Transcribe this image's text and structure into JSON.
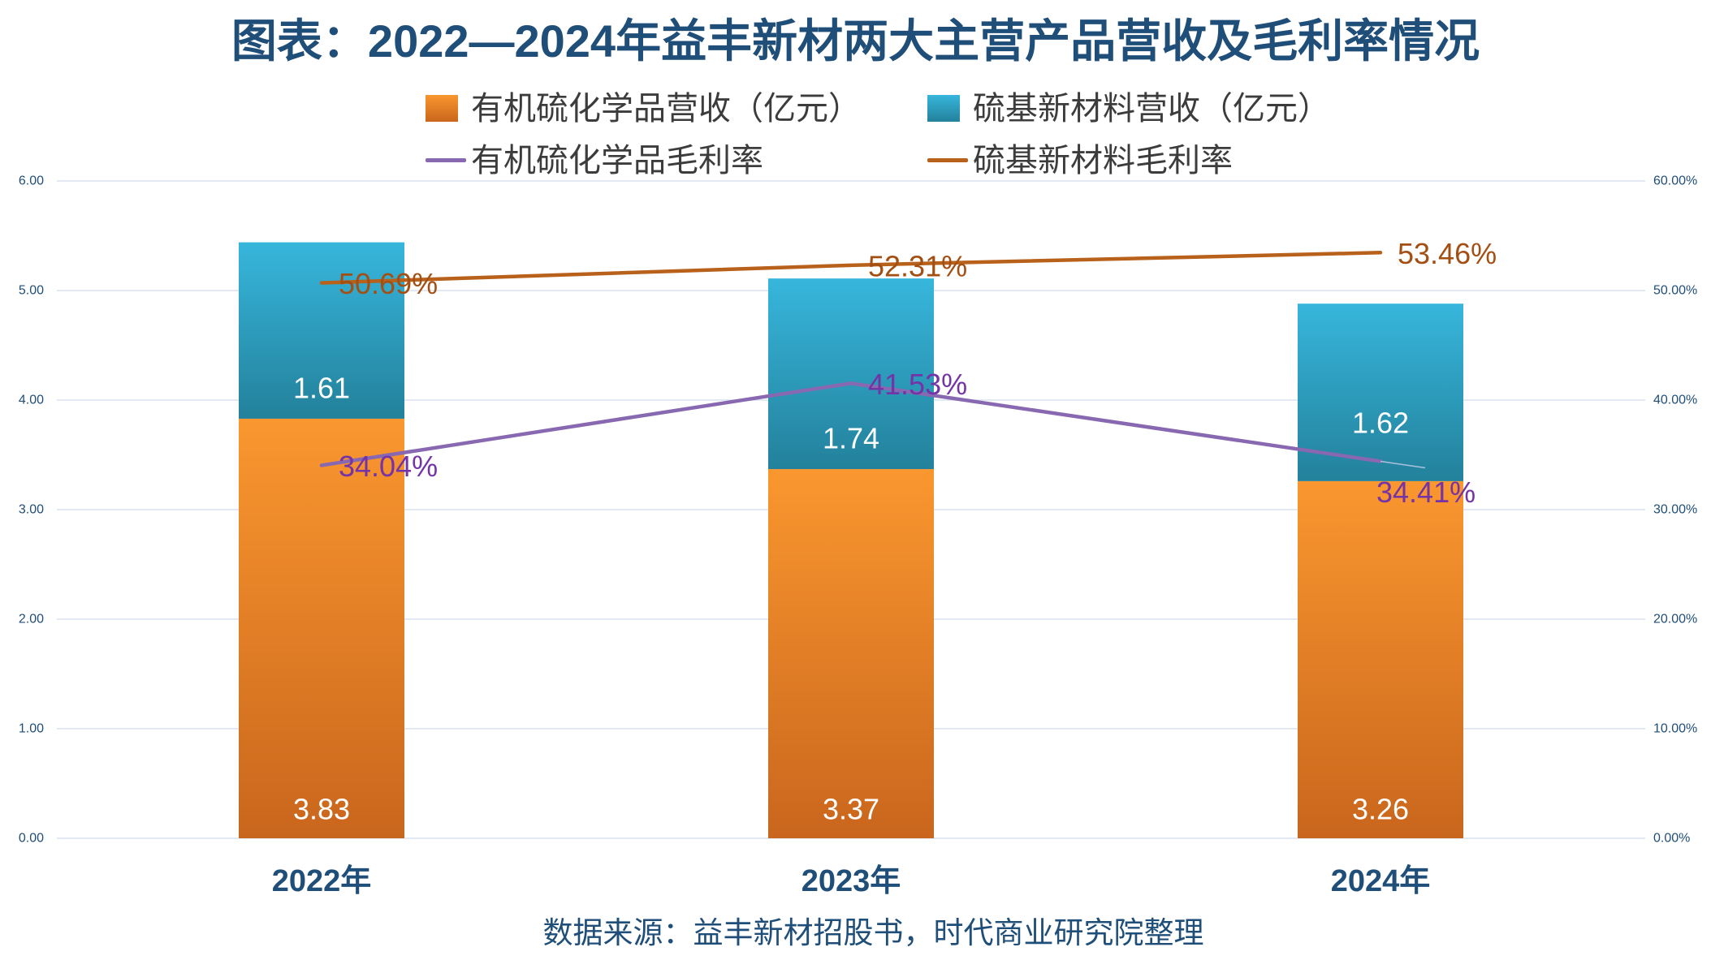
{
  "chart_data": {
    "type": "bar",
    "stacked": true,
    "title": "图表：2022—2024年益丰新材两大主营产品营收及毛利率情况",
    "categories": [
      "2022年",
      "2023年",
      "2024年"
    ],
    "series": [
      {
        "name": "有机硫化学品营收（亿元）",
        "type": "bar",
        "axis": "left",
        "values": [
          3.83,
          3.37,
          3.26
        ],
        "labels": [
          "3.83",
          "3.37",
          "3.26"
        ],
        "color": "#fa972f",
        "color_dark": "#c9661d"
      },
      {
        "name": "硫基新材料营收（亿元）",
        "type": "bar",
        "axis": "left",
        "values": [
          1.61,
          1.74,
          1.62
        ],
        "labels": [
          "1.61",
          "1.74",
          "1.62"
        ],
        "color": "#37b6dc",
        "color_dark": "#23819b"
      },
      {
        "name": "有机硫化学品毛利率",
        "type": "line",
        "axis": "right",
        "values": [
          34.04,
          41.53,
          34.41
        ],
        "labels": [
          "34.04%",
          "41.53%",
          "34.41%"
        ],
        "color": "#8868b0",
        "label_color": "#7433a6"
      },
      {
        "name": "硫基新材料毛利率",
        "type": "line",
        "axis": "right",
        "values": [
          50.69,
          52.31,
          53.46
        ],
        "labels": [
          "50.69%",
          "52.31%",
          "53.46%"
        ],
        "color": "#b8611b",
        "label_color": "#a34f13"
      }
    ],
    "y_left": {
      "min": 0,
      "max": 6,
      "ticks": [
        "0.00",
        "1.00",
        "2.00",
        "3.00",
        "4.00",
        "5.00",
        "6.00"
      ]
    },
    "y_right": {
      "min": 0,
      "max": 60,
      "ticks": [
        "0.00%",
        "10.00%",
        "20.00%",
        "30.00%",
        "40.00%",
        "50.00%",
        "60.00%"
      ]
    },
    "grid": true,
    "legend_position": "top"
  },
  "source": "数据来源：益丰新材招股书，时代商业研究院整理"
}
